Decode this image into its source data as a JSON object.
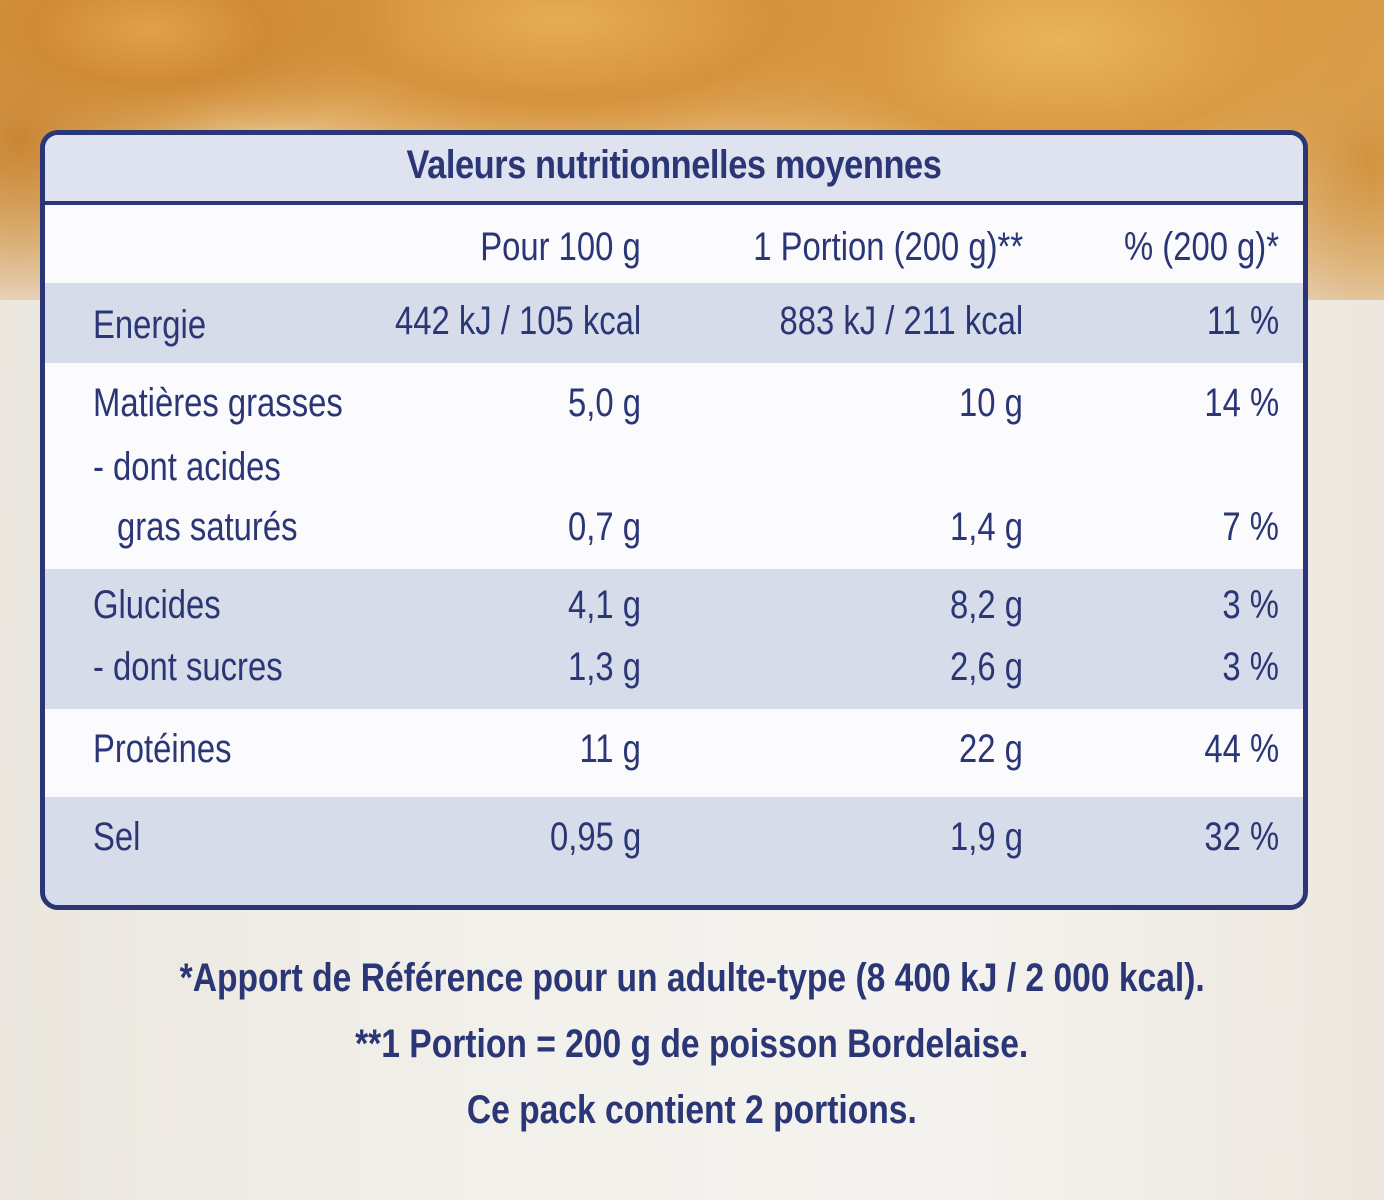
{
  "table": {
    "title": "Valeurs nutritionnelles moyennes",
    "header": {
      "per100": "Pour 100 g",
      "portion": "1 Portion (200 g)**",
      "percent": "% (200 g)*"
    },
    "rows": [
      {
        "label": "Energie",
        "per100": "442 kJ / 105 kcal",
        "portion": "883 kJ / 211 kcal",
        "percent": "11 %"
      },
      {
        "label": "Matières grasses",
        "per100": "5,0 g",
        "portion": "10 g",
        "percent": "14 %"
      },
      {
        "label": "- dont acides",
        "per100": "",
        "portion": "",
        "percent": ""
      },
      {
        "label": "gras saturés",
        "per100": "0,7 g",
        "portion": "1,4 g",
        "percent": "7 %"
      },
      {
        "label": "Glucides",
        "per100": "4,1 g",
        "portion": "8,2 g",
        "percent": "3 %"
      },
      {
        "label": "- dont sucres",
        "per100": "1,3 g",
        "portion": "2,6 g",
        "percent": "3 %"
      },
      {
        "label": "Protéines",
        "per100": "11 g",
        "portion": "22 g",
        "percent": "44 %"
      },
      {
        "label": "Sel",
        "per100": "0,95 g",
        "portion": "1,9 g",
        "percent": "32 %"
      }
    ]
  },
  "footnotes": [
    "*Apport de Référence pour un adulte-type (8 400 kJ / 2 000 kcal).",
    "**1 Portion = 200 g de poisson Bordelaise.",
    "Ce pack contient 2 portions."
  ],
  "colors": {
    "ink": "#2a3675",
    "row_shade": "#d7dcea",
    "panel": "#fbfbfd"
  }
}
